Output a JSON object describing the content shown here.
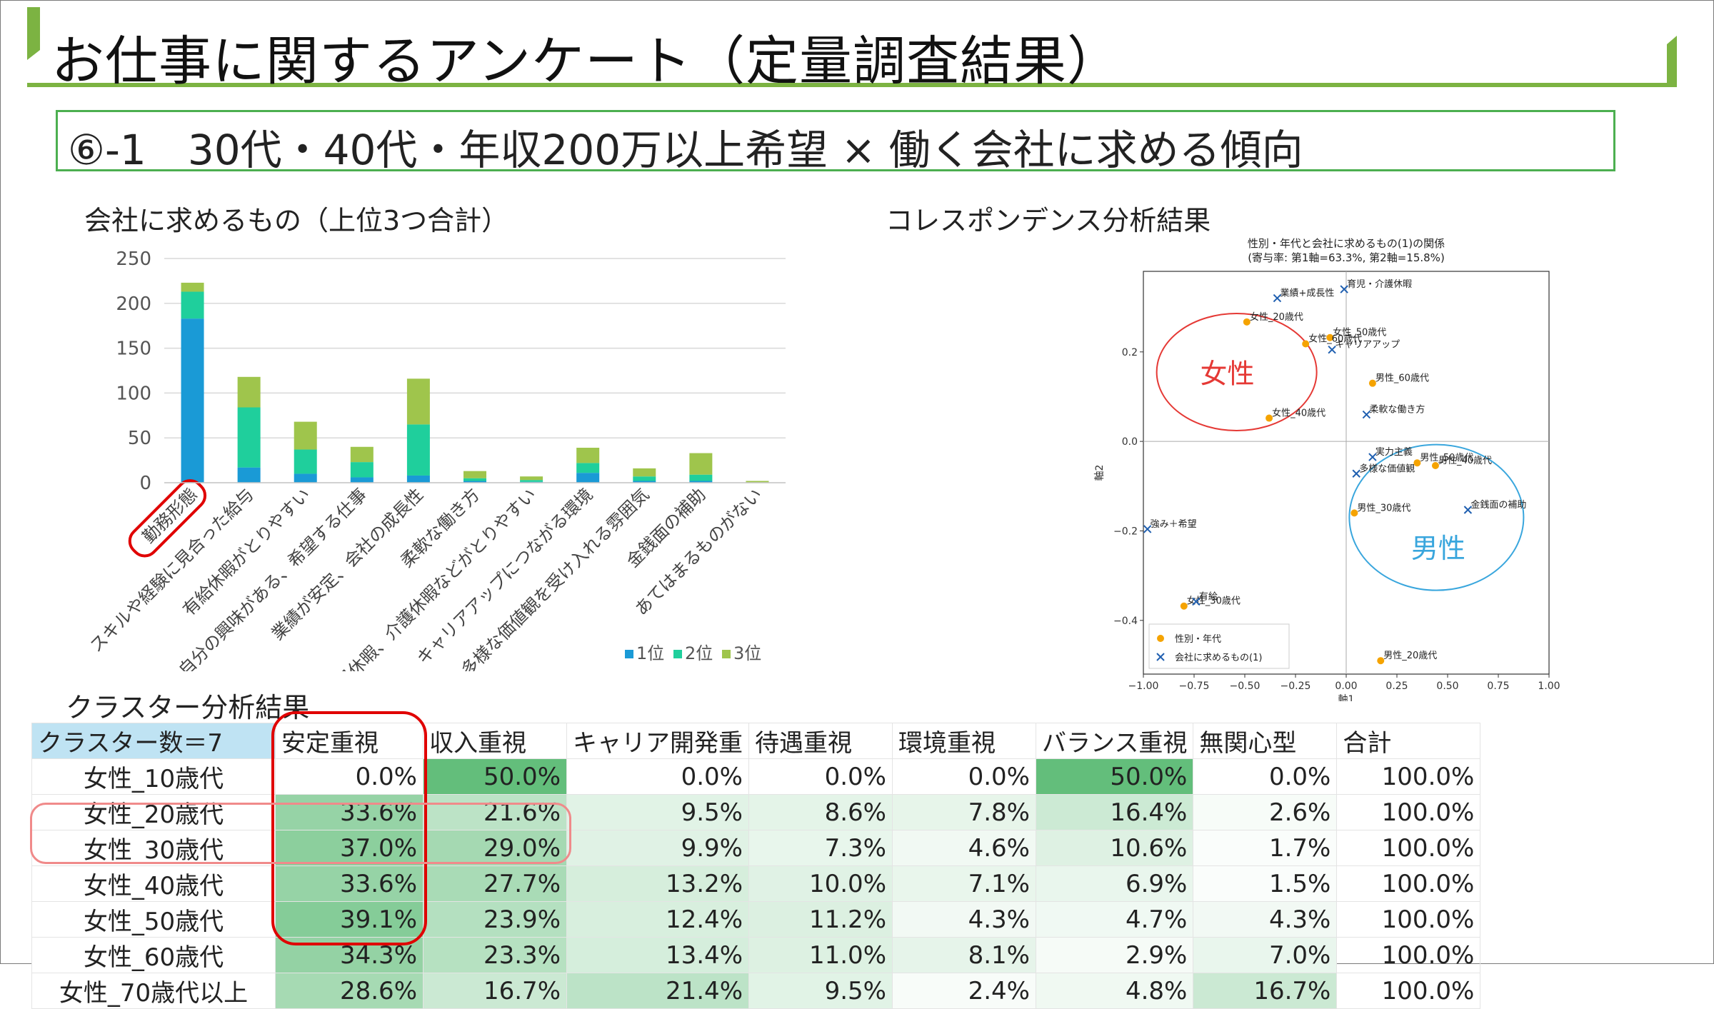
{
  "header": {
    "title": "お仕事に関するアンケート（定量調査結果）",
    "subtitle": "⑥-1　30代・40代・年収200万以上希望 × 働く会社に求める傾向"
  },
  "bar_section": {
    "title": "会社に求めるもの（上位3つ合計）"
  },
  "ca_section": {
    "title": "コレスポンデンス分析結果"
  },
  "cluster_section": {
    "title": "クラスター分析結果"
  },
  "annotations": {
    "female": "女性",
    "male": "男性"
  },
  "colors": {
    "rank1": "#1a9ad6",
    "rank2": "#1fcf9c",
    "rank3": "#9fc54c",
    "accent_green": "#4caf50",
    "highlight_red": "#e00000",
    "female_circle": "#e53935",
    "male_circle": "#39a6dd",
    "orange": "#f5a300",
    "blue_x": "#1f5fb0"
  },
  "chart_data": [
    {
      "type": "bar",
      "stacked": true,
      "categories": [
        "勤務形態",
        "スキルや経験に見合った給与",
        "有給休暇がとりやすい",
        "自分の興味がある、希望する仕事",
        "業績が安定、会社の成長性",
        "柔軟な働き方",
        "育児休暇、介護休暇などがとりやすい",
        "キャリアアップにつながる環境",
        "多様な価値観を受け入れる雰囲気",
        "金銭面の補助",
        "あてはまるものがない"
      ],
      "series": [
        {
          "name": "1位",
          "values": [
            183,
            17,
            10,
            6,
            8,
            2,
            1,
            11,
            2,
            2,
            0
          ]
        },
        {
          "name": "2位",
          "values": [
            30,
            67,
            27,
            17,
            57,
            3,
            2,
            11,
            5,
            7,
            0
          ]
        },
        {
          "name": "3位",
          "values": [
            10,
            34,
            31,
            17,
            51,
            8,
            4,
            17,
            9,
            24,
            2
          ]
        }
      ],
      "ylim": [
        0,
        250
      ],
      "yticks": [
        0,
        50,
        100,
        150,
        200,
        250
      ],
      "grid": true,
      "legend": "bottom-right",
      "highlight_category": "勤務形態"
    },
    {
      "type": "scatter",
      "title": "性別・年代と会社に求めるもの(1)の関係",
      "subtitle": "(寄与率: 第1軸=63.3%, 第2軸=15.8%)",
      "xlabel": "軸1",
      "ylabel": "軸2",
      "xlim": [
        -1.0,
        1.0
      ],
      "ylim": [
        -0.52,
        0.38
      ],
      "xticks": [
        -1.0,
        -0.75,
        -0.5,
        -0.25,
        0.0,
        0.25,
        0.5,
        0.75,
        1.0
      ],
      "xtick_labels": [
        "−1.00",
        "−0.75",
        "−0.50",
        "−0.25",
        "0.00",
        "0.25",
        "0.50",
        "0.75",
        "1.00"
      ],
      "yticks": [
        -0.4,
        -0.2,
        0.0,
        0.2
      ],
      "ytick_labels": [
        "−0.4",
        "−0.2",
        "0.0",
        "0.2"
      ],
      "legend": "lower-left",
      "series": [
        {
          "name": "性別・年代",
          "marker": "circle",
          "points": [
            {
              "label": "女性_20歳代",
              "x": -0.49,
              "y": 0.267
            },
            {
              "label": "女性_50歳代",
              "x": -0.08,
              "y": 0.232
            },
            {
              "label": "女性_60歳代",
              "x": -0.2,
              "y": 0.218
            },
            {
              "label": "男性_60歳代",
              "x": 0.13,
              "y": 0.13
            },
            {
              "label": "女性_40歳代",
              "x": -0.38,
              "y": 0.052
            },
            {
              "label": "男性_50歳代",
              "x": 0.35,
              "y": -0.048
            },
            {
              "label": "男性_40歳代",
              "x": 0.44,
              "y": -0.054
            },
            {
              "label": "男性_30歳代",
              "x": 0.04,
              "y": -0.16
            },
            {
              "label": "女性_30歳代",
              "x": -0.8,
              "y": -0.368
            },
            {
              "label": "男性_20歳代",
              "x": 0.17,
              "y": -0.49
            }
          ]
        },
        {
          "name": "会社に求めるもの(1)",
          "marker": "x",
          "points": [
            {
              "label": "業績+成長性",
              "x": -0.34,
              "y": 0.32
            },
            {
              "label": "育児・介護休暇",
              "x": -0.01,
              "y": 0.34
            },
            {
              "label": "キャリアアップ",
              "x": -0.07,
              "y": 0.205
            },
            {
              "label": "柔軟な働き方",
              "x": 0.1,
              "y": 0.06
            },
            {
              "label": "実力主義",
              "x": 0.13,
              "y": -0.035
            },
            {
              "label": "多様な価値観",
              "x": 0.05,
              "y": -0.072
            },
            {
              "label": "金銭面の補助",
              "x": 0.6,
              "y": -0.153
            },
            {
              "label": "強み＋希望",
              "x": -0.98,
              "y": -0.196
            },
            {
              "label": "有給",
              "x": -0.74,
              "y": -0.358
            }
          ]
        }
      ]
    },
    {
      "type": "table",
      "columns": [
        "クラスター数＝7",
        "安定重視",
        "収入重視",
        "キャリア開発重",
        "待遇重視",
        "環境重視",
        "バランス重視",
        "無関心型",
        "合計"
      ],
      "rows": [
        {
          "label": "女性_10歳代",
          "cells": [
            "0.0%",
            "50.0%",
            "0.0%",
            "0.0%",
            "0.0%",
            "50.0%",
            "0.0%",
            "100.0%"
          ]
        },
        {
          "label": "女性_20歳代",
          "cells": [
            "33.6%",
            "21.6%",
            "9.5%",
            "8.6%",
            "7.8%",
            "16.4%",
            "2.6%",
            "100.0%"
          ]
        },
        {
          "label": "女性_30歳代",
          "cells": [
            "37.0%",
            "29.0%",
            "9.9%",
            "7.3%",
            "4.6%",
            "10.6%",
            "1.7%",
            "100.0%"
          ]
        },
        {
          "label": "女性_40歳代",
          "cells": [
            "33.6%",
            "27.7%",
            "13.2%",
            "10.0%",
            "7.1%",
            "6.9%",
            "1.5%",
            "100.0%"
          ]
        },
        {
          "label": "女性_50歳代",
          "cells": [
            "39.1%",
            "23.9%",
            "12.4%",
            "11.2%",
            "4.3%",
            "4.7%",
            "4.3%",
            "100.0%"
          ]
        },
        {
          "label": "女性_60歳代",
          "cells": [
            "34.3%",
            "23.3%",
            "13.4%",
            "11.0%",
            "8.1%",
            "2.9%",
            "7.0%",
            "100.0%"
          ]
        },
        {
          "label": "女性_70歳代以上",
          "cells": [
            "28.6%",
            "16.7%",
            "21.4%",
            "9.5%",
            "2.4%",
            "4.8%",
            "16.7%",
            "100.0%"
          ]
        }
      ]
    }
  ]
}
